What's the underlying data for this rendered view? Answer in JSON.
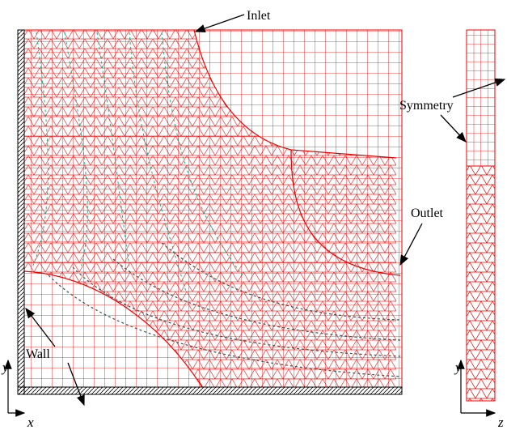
{
  "labels": {
    "inlet": "Inlet",
    "symmetry": "Symmetry",
    "outlet": "Outlet",
    "wall": "Wall"
  },
  "axes": {
    "main": {
      "x": "x",
      "y": "y"
    },
    "side": {
      "y": "y",
      "z": "z"
    }
  }
}
